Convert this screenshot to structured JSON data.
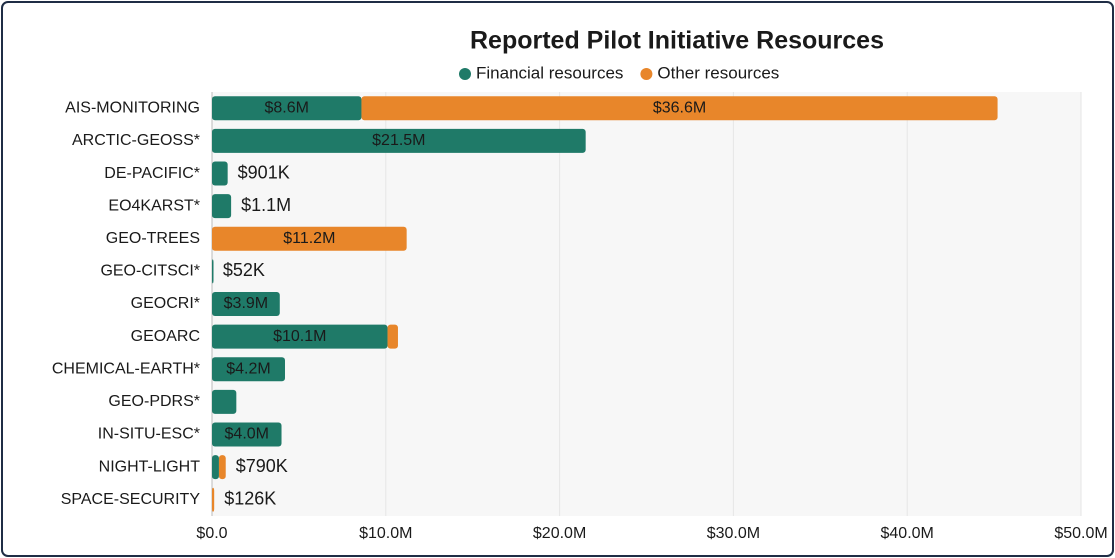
{
  "chart_data": {
    "type": "stacked-barh",
    "title": "Reported Pilot Initiative Resources",
    "categories": [
      "AIS-MONITORING",
      "ARCTIC-GEOSS*",
      "DE-PACIFIC*",
      "EO4KARST*",
      "GEO-TREES",
      "GEO-CITSCI*",
      "GEOCRI*",
      "GEOARC",
      "CHEMICAL-EARTH*",
      "GEO-PDRS*",
      "IN-SITU-ESC*",
      "NIGHT-LIGHT",
      "SPACE-SECURITY"
    ],
    "series": [
      {
        "name": "Financial resources",
        "color": "#1f7a68",
        "values": [
          8600000,
          21500000,
          901000,
          1100000,
          0,
          52000,
          3900000,
          10100000,
          4200000,
          1400000,
          4000000,
          400000,
          0
        ],
        "value_labels": [
          "$8.6M",
          "$21.5M",
          null,
          null,
          null,
          null,
          "$3.9M",
          "$10.1M",
          "$4.2M",
          null,
          "$4.0M",
          null,
          null
        ]
      },
      {
        "name": "Other resources",
        "color": "#e8862a",
        "values": [
          36600000,
          0,
          0,
          0,
          11200000,
          0,
          0,
          600000,
          0,
          0,
          0,
          390000,
          126000
        ],
        "value_labels": [
          "$36.6M",
          null,
          null,
          null,
          "$11.2M",
          null,
          null,
          null,
          null,
          null,
          null,
          null,
          null
        ]
      }
    ],
    "totals": {
      "values": [
        null,
        null,
        901000,
        1100000,
        null,
        52000,
        null,
        null,
        null,
        null,
        null,
        790000,
        126000
      ],
      "value_labels": [
        null,
        null,
        "$901K",
        "$1.1M",
        null,
        "$52K",
        null,
        null,
        null,
        null,
        null,
        "$790K",
        "$126K"
      ]
    },
    "xlim": [
      0,
      50000000
    ],
    "xticks": [
      {
        "value": 0,
        "label": "$0.0"
      },
      {
        "value": 10000000,
        "label": "$10.0M"
      },
      {
        "value": 20000000,
        "label": "$20.0M"
      },
      {
        "value": 30000000,
        "label": "$30.0M"
      },
      {
        "value": 40000000,
        "label": "$40.0M"
      },
      {
        "value": 50000000,
        "label": "$50.0M"
      }
    ],
    "grid": true,
    "legend": "top"
  }
}
